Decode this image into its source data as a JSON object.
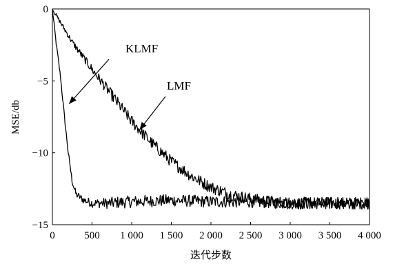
{
  "chart_data": {
    "type": "line",
    "title": "",
    "xlabel": "迭代步数",
    "ylabel": "MSE/db",
    "xlim": [
      0,
      4000
    ],
    "ylim": [
      -15,
      0
    ],
    "xticks": [
      0,
      500,
      1000,
      1500,
      2000,
      2500,
      3000,
      3500,
      4000
    ],
    "xtick_labels": [
      "0",
      "500",
      "1 000",
      "1 500",
      "2 000",
      "2 500",
      "3 000",
      "3 500",
      "4 000"
    ],
    "yticks": [
      0,
      -5,
      -10,
      -15
    ],
    "ytick_labels": [
      "0",
      "−5",
      "−10",
      "−15"
    ],
    "grid": false,
    "series": [
      {
        "name": "KLMF",
        "color": "#000000",
        "x": [
          0,
          50,
          100,
          150,
          200,
          250,
          300,
          400,
          500,
          700,
          1000,
          1500,
          2000,
          2500,
          3000,
          3500,
          4000
        ],
        "y": [
          0,
          -2.5,
          -4.6,
          -7.4,
          -10.0,
          -12.0,
          -12.9,
          -13.3,
          -13.5,
          -13.5,
          -13.4,
          -13.3,
          -13.4,
          -13.4,
          -13.5,
          -13.5,
          -13.5
        ]
      },
      {
        "name": "LMF",
        "color": "#000000",
        "x": [
          0,
          250,
          500,
          750,
          1000,
          1250,
          1500,
          1750,
          2000,
          2250,
          2500,
          2750,
          3000,
          3500,
          4000
        ],
        "y": [
          0,
          -2.3,
          -4.2,
          -6.0,
          -7.8,
          -9.3,
          -10.6,
          -11.6,
          -12.4,
          -12.9,
          -13.2,
          -13.4,
          -13.5,
          -13.5,
          -13.5
        ]
      }
    ],
    "annotations": [
      {
        "text": "KLMF",
        "points_to": {
          "series": "KLMF",
          "x": 210,
          "y": -6.6
        }
      },
      {
        "text": "LMF",
        "points_to": {
          "series": "LMF",
          "x": 1100,
          "y": -8.4
        }
      }
    ]
  }
}
